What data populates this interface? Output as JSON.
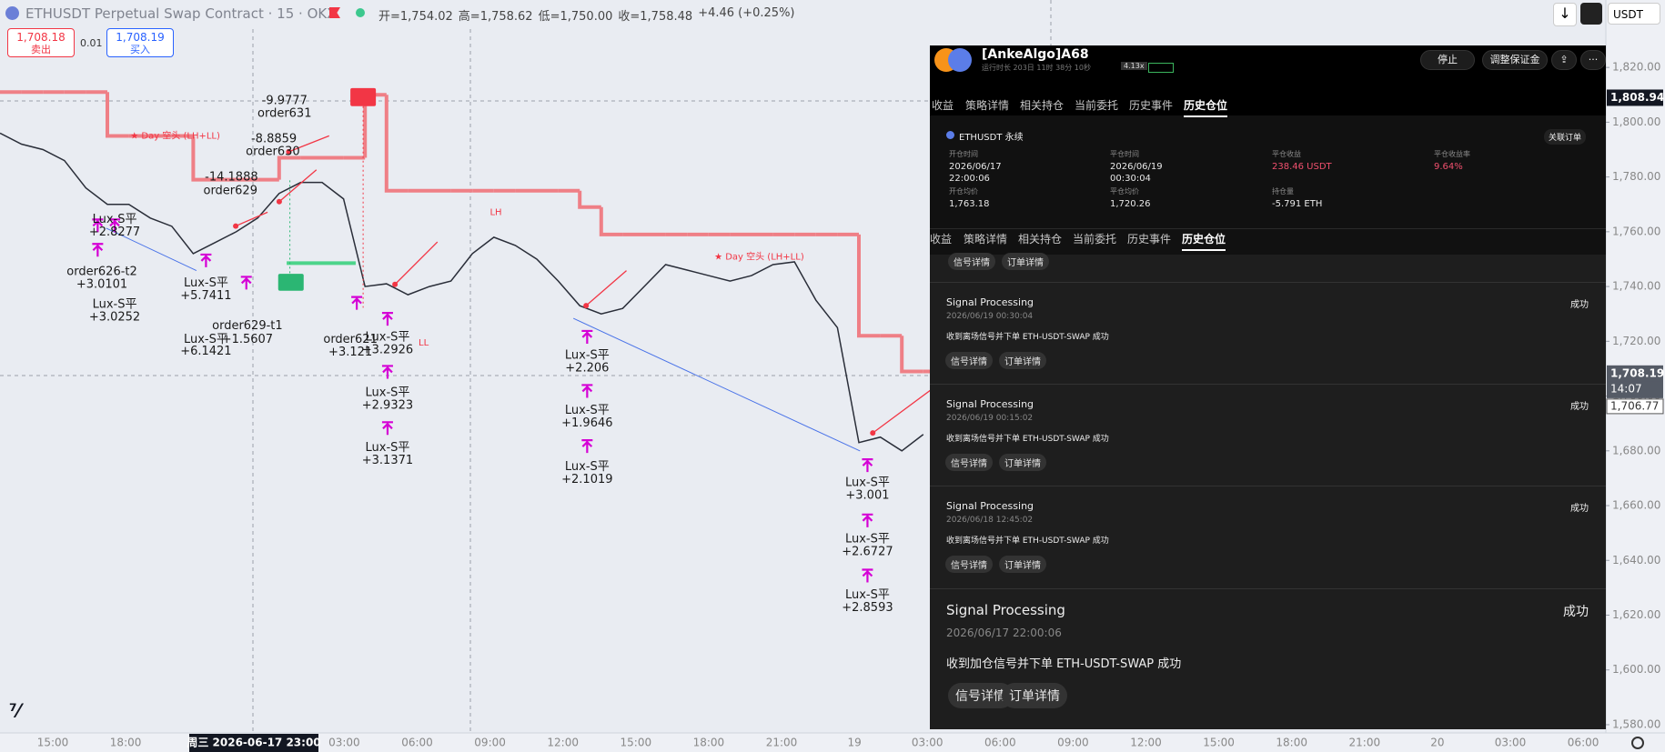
{
  "top_bar": {
    "symbol": "ETHUSDT Perpetual Swap Contract · 15 · OKX",
    "ohlc": [
      "开=1,754.02",
      "高=1,758.62",
      "低=1,750.00",
      "收=1,758.48",
      "+4.46 (+0.25%)"
    ],
    "currency": "USDT"
  },
  "order_buttons": {
    "sell_price": "1,708.18",
    "sell_label": "卖出",
    "spread": "0.01",
    "buy_price": "1,708.19",
    "buy_label": "买入"
  },
  "chart_data": {
    "type": "line",
    "series": [
      {
        "color": "#2a2e39",
        "values": [
          1796,
          1792,
          1790,
          1786,
          1776,
          1770,
          1770,
          1765,
          1762,
          1752,
          1756,
          1760,
          1765,
          1774,
          1778,
          1778,
          1772,
          1740,
          1741,
          1737,
          1740,
          1742,
          1752,
          1758,
          1755,
          1750,
          1742,
          1733,
          1730,
          1732,
          1740,
          1748,
          1746,
          1744,
          1742,
          1744,
          1748,
          1749,
          1735,
          1725,
          1683,
          1685,
          1680,
          1686
        ]
      },
      {
        "color": "#ef7f86",
        "step": true,
        "values": [
          1811,
          1811,
          1811,
          1811,
          1811,
          1795,
          1795,
          1795,
          1795,
          1779,
          1779,
          1779,
          1779,
          1787,
          1787,
          1787,
          1787,
          1810,
          1775,
          1775,
          1775,
          1775,
          1775,
          1775,
          1775,
          1775,
          1775,
          1769,
          1759,
          1759,
          1759,
          1759,
          1759,
          1759,
          1759,
          1759,
          1759,
          1759,
          1759,
          1759,
          1722,
          1722,
          1709,
          1709
        ]
      }
    ],
    "ylim": [
      1577,
      1834
    ],
    "yticks": [
      {
        "value": 1580,
        "label": "1,580.00"
      },
      {
        "value": 1600,
        "label": "1,600.00"
      },
      {
        "value": 1620,
        "label": "1,620.00"
      },
      {
        "value": 1640,
        "label": "1,640.00"
      },
      {
        "value": 1660,
        "label": "1,660.00"
      },
      {
        "value": 1680,
        "label": "1,680.00"
      },
      {
        "value": 1700,
        "label": "1,700.00"
      },
      {
        "value": 1720,
        "label": "1,720.00"
      },
      {
        "value": 1740,
        "label": "1,740.00"
      },
      {
        "value": 1760,
        "label": "1,760.00"
      },
      {
        "value": 1780,
        "label": "1,780.00"
      },
      {
        "value": 1800,
        "label": "1,800.00"
      },
      {
        "value": 1820,
        "label": "1,820.00"
      }
    ],
    "grid": false,
    "time_axis_labels": [
      "15:00",
      "18:00",
      null,
      null,
      "03:00",
      "06:00",
      "09:00",
      "12:00",
      "15:00",
      "18:00",
      "21:00",
      "19",
      "03:00",
      "06:00",
      "09:00",
      "12:00",
      "15:00",
      "18:00",
      "21:00",
      "20",
      "03:00",
      "06:00"
    ],
    "crosshair_time": "周三 2026-06-17   23:00",
    "price_labels": [
      {
        "value": 1808.94,
        "label": "1,808.94"
      },
      {
        "value": 1708.19,
        "label": "1,708.19"
      },
      {
        "value": 1706.77,
        "label": "1,706.77"
      }
    ],
    "countdown": "14:07",
    "annotations": [
      "★ Day 空头 (LH+LL)",
      "★ Day 空头 (LH+LL)",
      "-9.9777",
      "order631",
      "-8.8859",
      "order630",
      "-14.1888",
      "order629",
      "Lux-S平",
      "+2.8277",
      "order626-t2",
      "+3.0101",
      "Lux-S平",
      "+5.7411",
      "Lux-S平",
      "+3.0252",
      "order629-t1",
      "+1.5607",
      "Lux-S平",
      "+6.1421",
      "order621",
      "+3.121",
      "Lux-S平",
      "+3.2926",
      "Lux-S平",
      "+2.9323",
      "Lux-S平",
      "+3.1371",
      "Lux-S平",
      "+2.206",
      "Lux-S平",
      "+1.9646",
      "Lux-S平",
      "+2.1019",
      "Lux-S平",
      "+3.001",
      "Lux-S平",
      "+2.6727",
      "Lux-S平",
      "+2.8593",
      "LH",
      "LL"
    ]
  },
  "panel": {
    "title": "[AnkeAlgo]A68",
    "runtime": "运行时长 203日 11时 38分 10秒",
    "leverage": "4.13x",
    "buttons": [
      "停止",
      "调整保证金"
    ],
    "tabs": [
      "收益",
      "策略详情",
      "相关持仓",
      "当前委托",
      "历史事件",
      "历史仓位"
    ],
    "position": {
      "symbol": "ETHUSDT 永续",
      "link": "关联订单",
      "fields": [
        {
          "label": "开仓时间",
          "value": "2026/06/17 22:00:06"
        },
        {
          "label": "平仓时间",
          "value": "2026/06/19 00:30:04"
        },
        {
          "label": "平仓收益",
          "value": "238.46 USDT"
        },
        {
          "label": "平仓收益率",
          "value": "9.64%"
        },
        {
          "label": "开仓均价",
          "value": "1,763.18"
        },
        {
          "label": "平仓均价",
          "value": "1,720.26"
        },
        {
          "label": "持仓量",
          "value": "-5.791 ETH"
        }
      ]
    },
    "partial_actions": [
      "信号详情",
      "订单详情"
    ],
    "events": [
      {
        "title": "Signal Processing",
        "status": "成功",
        "time": "2026/06/19 00:30:04",
        "message": "收到离场信号并下单 ETH-USDT-SWAP 成功",
        "actions": [
          "信号详情",
          "订单详情"
        ]
      },
      {
        "title": "Signal Processing",
        "status": "成功",
        "time": "2026/06/19 00:15:02",
        "message": "收到离场信号并下单 ETH-USDT-SWAP 成功",
        "actions": [
          "信号详情",
          "订单详情"
        ]
      },
      {
        "title": "Signal Processing",
        "status": "成功",
        "time": "2026/06/18 12:45:02",
        "message": "收到离场信号并下单 ETH-USDT-SWAP 成功",
        "actions": [
          "信号详情",
          "订单详情"
        ]
      },
      {
        "title": "Signal Processing",
        "status": "成功",
        "time": "2026/06/17 22:00:06",
        "message": "收到加仓信号并下单 ETH-USDT-SWAP 成功",
        "actions": [
          "信号详情",
          "订单详情"
        ]
      }
    ]
  }
}
